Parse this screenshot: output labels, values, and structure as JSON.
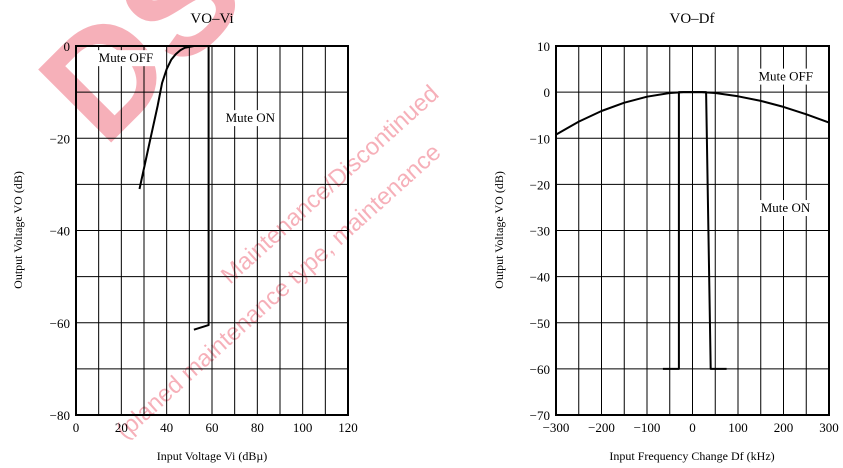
{
  "watermark": {
    "big_text": "DS",
    "line1": "Maintenance/Discontinued",
    "line2": "(planed maintenance type, maintenance",
    "color": "#e8203a"
  },
  "chart_data": [
    {
      "type": "line",
      "title": "VO–Vi",
      "xlabel": "Input Voltage Vi (dBµ)",
      "ylabel": "Output Voltage VO (dB)",
      "xlim": [
        0,
        120
      ],
      "ylim": [
        -80,
        0
      ],
      "xticks": [
        0,
        20,
        40,
        60,
        80,
        100,
        120
      ],
      "yticks": [
        0,
        -20,
        -40,
        -60,
        -80
      ],
      "minor_x_step": 10,
      "minor_y_step": 10,
      "grid": true,
      "series": [
        {
          "name": "Mute OFF",
          "x": [
            28,
            32,
            36,
            38,
            40,
            42,
            44,
            46,
            48,
            50,
            52,
            55,
            58
          ],
          "y": [
            -31,
            -22,
            -13,
            -8,
            -5,
            -3,
            -1.8,
            -0.9,
            -0.4,
            -0.2,
            0,
            0,
            0
          ]
        },
        {
          "name": "Mute ON",
          "x": [
            58,
            58.5,
            58.5,
            52
          ],
          "y": [
            0,
            0,
            -60.5,
            -61.5
          ]
        }
      ],
      "annotations": [
        {
          "text": "Mute OFF",
          "x": 10,
          "y": -3.5
        },
        {
          "text": "Mute ON",
          "x": 66,
          "y": -16.5
        }
      ]
    },
    {
      "type": "line",
      "title": "VO–Df",
      "xlabel": "Input Frequency Change Df (kHz)",
      "ylabel": "Output Voltage VO (dB)",
      "xlim": [
        -300,
        300
      ],
      "ylim": [
        -70,
        10
      ],
      "xticks": [
        -300,
        -200,
        -100,
        0,
        100,
        200,
        300
      ],
      "yticks": [
        10,
        0,
        -10,
        -20,
        -30,
        -40,
        -50,
        -60,
        -70
      ],
      "minor_x_step": 50,
      "minor_y_step": 10,
      "grid": true,
      "series": [
        {
          "name": "Mute OFF",
          "x": [
            -300,
            -250,
            -200,
            -150,
            -100,
            -50,
            -20,
            0,
            20,
            50,
            100,
            150,
            200,
            250,
            300
          ],
          "y": [
            -9.2,
            -6.4,
            -4.1,
            -2.3,
            -1.0,
            -0.2,
            0,
            0,
            0,
            -0.2,
            -0.9,
            -1.9,
            -3.2,
            -4.8,
            -6.6
          ]
        },
        {
          "name": "Mute ON",
          "x": [
            -65,
            -30,
            -30,
            -30,
            0,
            30,
            40,
            40,
            75
          ],
          "y": [
            -60,
            -60,
            -60,
            0,
            0,
            0,
            -60,
            -60,
            -60
          ]
        }
      ],
      "annotations": [
        {
          "text": "Mute OFF",
          "x": 145,
          "y": 2.5
        },
        {
          "text": "Mute ON",
          "x": 150,
          "y": -26
        }
      ]
    }
  ]
}
